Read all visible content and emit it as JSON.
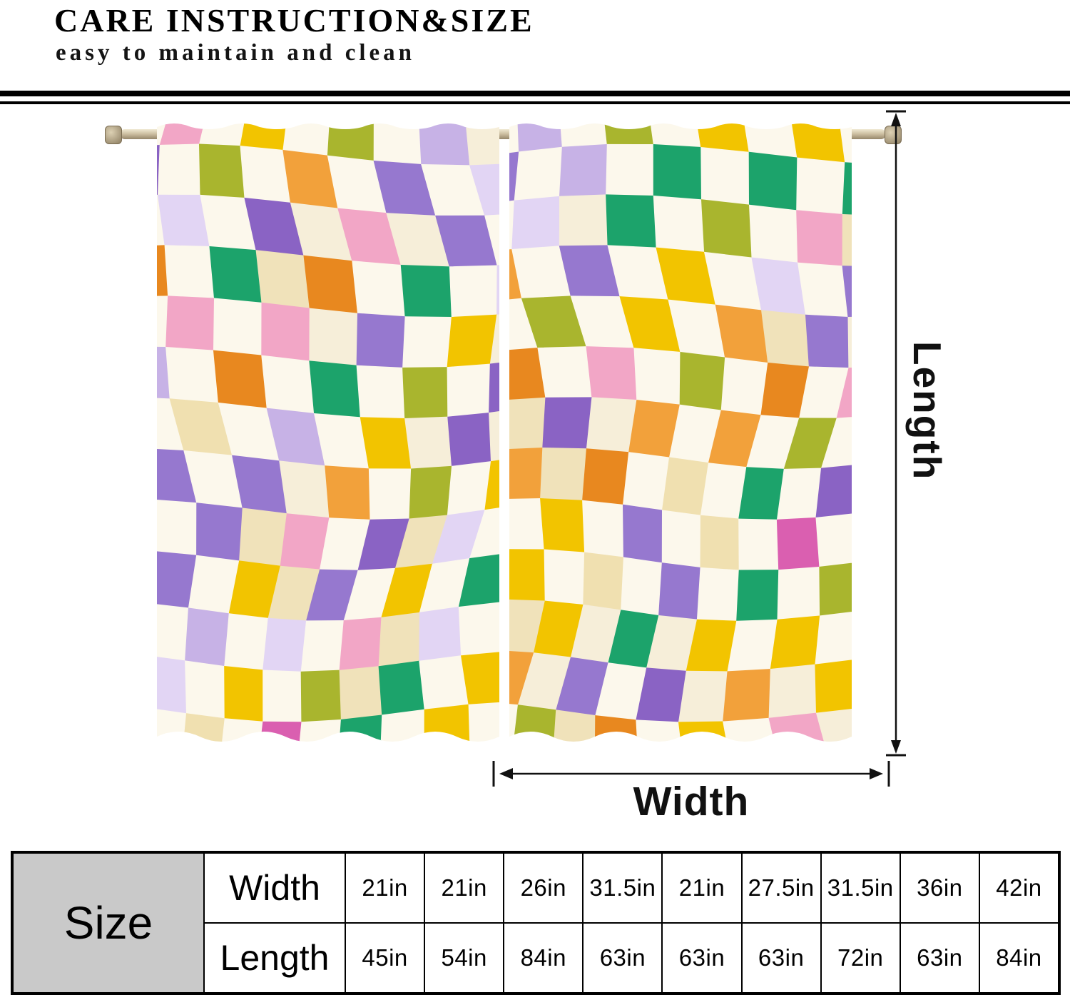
{
  "header": {
    "title": "CARE INSTRUCTION&SIZE",
    "subtitle": "easy to maintain and clean"
  },
  "diagram": {
    "length_label": "Length",
    "width_label": "Width"
  },
  "size_table": {
    "corner_label": "Size",
    "rows": [
      {
        "label": "Width",
        "values": [
          "21in",
          "21in",
          "26in",
          "31.5in",
          "21in",
          "27.5in",
          "31.5in",
          "36in",
          "42in"
        ]
      },
      {
        "label": "Length",
        "values": [
          "45in",
          "54in",
          "84in",
          "63in",
          "63in",
          "63in",
          "72in",
          "63in",
          "84in"
        ]
      }
    ]
  },
  "curtain": {
    "base_colors": [
      "#fcf8ec",
      "#f6eed9",
      "#f0e2ba"
    ],
    "palette": [
      "#f2c400",
      "#f2c400",
      "#f2c400",
      "#f2a13b",
      "#f2a13b",
      "#e8881f",
      "#9678cf",
      "#9678cf",
      "#8a63c4",
      "#c7b2e6",
      "#c7b2e6",
      "#e2d5f4",
      "#a9b52e",
      "#a9b52e",
      "#1ca36b",
      "#1ca36b",
      "#f2a6c6",
      "#f2a6c6",
      "#da5fb0",
      "#f0e0b0"
    ],
    "rod_colors": {
      "light": "#e8dec6",
      "dark": "#96866a"
    },
    "arrow_color": "#111111",
    "table_corner_bg": "#c9c9c9",
    "divider_color": "#000000"
  }
}
